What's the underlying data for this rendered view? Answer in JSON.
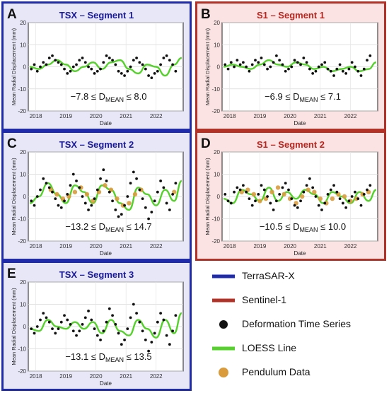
{
  "colors": {
    "tsx_border": "#1f2ba8",
    "tsx_bg": "#e7e7f8",
    "s1_border": "#b23228",
    "s1_bg": "#fbe3e3",
    "tsx_title": "#1a1a9c",
    "s1_title": "#b8261f",
    "points": "#111111",
    "loess": "#55d12b",
    "pendulum": "#d99b3c"
  },
  "legend": {
    "items": [
      {
        "label": "TerraSAR-X",
        "type": "line",
        "color": "#1f2ba8"
      },
      {
        "label": "Sentinel-1",
        "type": "line",
        "color": "#b23228"
      },
      {
        "label": "Deformation Time Series",
        "type": "dot",
        "color": "#111111"
      },
      {
        "label": "LOESS Line",
        "type": "line",
        "color": "#55d12b"
      },
      {
        "label": "Pendulum Data",
        "type": "dot",
        "color": "#d99b3c"
      }
    ]
  },
  "chart_data": [
    {
      "panel_letter": "A",
      "title": "TSX – Segment 1",
      "sensor": "TSX",
      "type": "scatter",
      "ylabel": "Mean Radial Displacement (mm)",
      "xlabel": "Date",
      "ylim": [
        -20,
        20
      ],
      "yticks": [
        -20,
        -10,
        0,
        10,
        20
      ],
      "xlim": [
        2017.75,
        2022.9
      ],
      "xticks": [
        "2018",
        "2019",
        "2020",
        "2021",
        "2022"
      ],
      "annotation": {
        "prefix": "−7.8 ≤ D",
        "sub": "MEAN",
        "suffix": " ≤ 8.0"
      },
      "series": [
        {
          "name": "Deformation Time Series",
          "kind": "points",
          "x": [
            2017.85,
            2017.95,
            2018.05,
            2018.15,
            2018.25,
            2018.35,
            2018.45,
            2018.55,
            2018.65,
            2018.75,
            2018.85,
            2018.95,
            2019.05,
            2019.15,
            2019.25,
            2019.35,
            2019.45,
            2019.55,
            2019.65,
            2019.75,
            2019.85,
            2019.95,
            2020.05,
            2020.15,
            2020.25,
            2020.35,
            2020.45,
            2020.55,
            2020.65,
            2020.75,
            2020.85,
            2020.95,
            2021.05,
            2021.15,
            2021.25,
            2021.35,
            2021.45,
            2021.55,
            2021.65,
            2021.75,
            2021.85,
            2021.95,
            2022.05,
            2022.15,
            2022.25,
            2022.35,
            2022.45,
            2022.55,
            2022.65
          ],
          "y": [
            -1,
            1,
            -2,
            0,
            2,
            1,
            4,
            5,
            3,
            2,
            1,
            -1,
            -3,
            -2,
            0,
            1,
            3,
            4,
            2,
            0,
            -1,
            -3,
            -2,
            -1,
            2,
            5,
            4,
            3,
            1,
            -2,
            -3,
            -4,
            -2,
            0,
            3,
            4,
            2,
            1,
            -1,
            -4,
            -5,
            -3,
            -2,
            1,
            4,
            5,
            3,
            1,
            -2
          ]
        },
        {
          "name": "LOESS Line",
          "kind": "line",
          "x": [
            2017.8,
            2018.1,
            2018.4,
            2018.7,
            2019.0,
            2019.3,
            2019.6,
            2019.9,
            2020.2,
            2020.5,
            2020.8,
            2021.1,
            2021.4,
            2021.7,
            2022.0,
            2022.3,
            2022.6,
            2022.85
          ],
          "y": [
            0,
            -1,
            1,
            3,
            1,
            -2,
            0,
            2,
            -1,
            2,
            3,
            -1,
            -3,
            1,
            0,
            -4,
            1,
            4
          ]
        }
      ]
    },
    {
      "panel_letter": "B",
      "title": "S1 – Segment 1",
      "sensor": "S1",
      "type": "scatter",
      "ylabel": "Mean Radial Displacement (mm)",
      "xlabel": "Date",
      "ylim": [
        -20,
        20
      ],
      "yticks": [
        -20,
        -10,
        0,
        10,
        20
      ],
      "xlim": [
        2017.75,
        2022.9
      ],
      "xticks": [
        "2018",
        "2019",
        "2020",
        "2021",
        "2022"
      ],
      "annotation": {
        "prefix": "−6.9 ≤ D",
        "sub": "MEAN",
        "suffix": " ≤ 7.1"
      },
      "series": [
        {
          "name": "Deformation Time Series",
          "kind": "points",
          "x": [
            2017.85,
            2017.95,
            2018.05,
            2018.15,
            2018.25,
            2018.35,
            2018.45,
            2018.55,
            2018.65,
            2018.75,
            2018.85,
            2018.95,
            2019.05,
            2019.15,
            2019.25,
            2019.35,
            2019.45,
            2019.55,
            2019.65,
            2019.75,
            2019.85,
            2019.95,
            2020.05,
            2020.15,
            2020.25,
            2020.35,
            2020.45,
            2020.55,
            2020.65,
            2020.75,
            2020.85,
            2020.95,
            2021.05,
            2021.15,
            2021.25,
            2021.35,
            2021.45,
            2021.55,
            2021.65,
            2021.75,
            2021.85,
            2021.95,
            2022.05,
            2022.15,
            2022.25,
            2022.35,
            2022.45,
            2022.55,
            2022.65
          ],
          "y": [
            1,
            -1,
            2,
            0,
            3,
            1,
            2,
            0,
            -2,
            1,
            3,
            2,
            4,
            1,
            -1,
            0,
            2,
            5,
            3,
            1,
            -2,
            -1,
            0,
            3,
            2,
            1,
            4,
            2,
            -1,
            -3,
            -2,
            0,
            1,
            2,
            -1,
            -2,
            -4,
            -1,
            1,
            -2,
            -3,
            -1,
            2,
            0,
            -2,
            -4,
            -1,
            3,
            5
          ]
        },
        {
          "name": "LOESS Line",
          "kind": "line",
          "x": [
            2017.8,
            2018.1,
            2018.4,
            2018.7,
            2019.0,
            2019.3,
            2019.6,
            2019.9,
            2020.2,
            2020.5,
            2020.8,
            2021.1,
            2021.4,
            2021.7,
            2022.0,
            2022.3,
            2022.6,
            2022.85
          ],
          "y": [
            0,
            1,
            0,
            -1,
            1,
            3,
            1,
            0,
            2,
            1,
            -1,
            0,
            -2,
            -1,
            0,
            -2,
            -1,
            2
          ]
        }
      ]
    },
    {
      "panel_letter": "C",
      "title": "TSX – Segment 2",
      "sensor": "TSX",
      "type": "scatter",
      "ylabel": "Mean Radial Displacement (mm)",
      "xlabel": "Date",
      "ylim": [
        -20,
        20
      ],
      "yticks": [
        -20,
        -10,
        0,
        10,
        20
      ],
      "xlim": [
        2017.75,
        2022.9
      ],
      "xticks": [
        "2018",
        "2019",
        "2020",
        "2021",
        "2022"
      ],
      "annotation": {
        "prefix": "−13.2 ≤ D",
        "sub": "MEAN",
        "suffix": " ≤ 14.7"
      },
      "series": [
        {
          "name": "Deformation Time Series",
          "kind": "points",
          "x": [
            2017.85,
            2017.95,
            2018.05,
            2018.15,
            2018.25,
            2018.35,
            2018.45,
            2018.55,
            2018.65,
            2018.75,
            2018.85,
            2018.95,
            2019.05,
            2019.15,
            2019.25,
            2019.35,
            2019.45,
            2019.55,
            2019.65,
            2019.75,
            2019.85,
            2019.95,
            2020.05,
            2020.15,
            2020.25,
            2020.35,
            2020.45,
            2020.55,
            2020.65,
            2020.75,
            2020.85,
            2020.95,
            2021.05,
            2021.15,
            2021.25,
            2021.35,
            2021.45,
            2021.55,
            2021.65,
            2021.75,
            2021.85,
            2021.95,
            2022.05,
            2022.15,
            2022.25,
            2022.35,
            2022.45,
            2022.55,
            2022.65
          ],
          "y": [
            -2,
            -4,
            0,
            3,
            8,
            6,
            4,
            2,
            -1,
            -4,
            -5,
            -2,
            1,
            5,
            10,
            7,
            4,
            0,
            -3,
            -6,
            -4,
            -1,
            3,
            8,
            12,
            7,
            2,
            -2,
            -6,
            -9,
            -8,
            -4,
            0,
            6,
            11,
            8,
            3,
            -1,
            -5,
            -10,
            -7,
            -2,
            2,
            7,
            4,
            -3,
            -6,
            1,
            6
          ]
        },
        {
          "name": "LOESS Line",
          "kind": "line",
          "x": [
            2017.8,
            2018.1,
            2018.4,
            2018.7,
            2019.0,
            2019.3,
            2019.6,
            2019.9,
            2020.2,
            2020.5,
            2020.8,
            2021.1,
            2021.4,
            2021.7,
            2022.0,
            2022.3,
            2022.6,
            2022.85
          ],
          "y": [
            -3,
            0,
            6,
            1,
            -3,
            5,
            2,
            -3,
            5,
            3,
            -3,
            -6,
            4,
            1,
            -4,
            3,
            -2,
            7
          ]
        },
        {
          "name": "Pendulum Data",
          "kind": "points",
          "x": [
            2018.5,
            2018.7,
            2018.9,
            2019.1,
            2019.3,
            2019.5,
            2019.7,
            2019.9,
            2020.1,
            2020.3,
            2020.5,
            2020.7,
            2020.9,
            2021.1,
            2021.3,
            2021.5,
            2022.6
          ],
          "y": [
            3,
            1,
            -1,
            0,
            2,
            4,
            1,
            -2,
            2,
            5,
            3,
            -1,
            -4,
            -3,
            1,
            3,
            2
          ]
        }
      ]
    },
    {
      "panel_letter": "D",
      "title": "S1 – Segment 2",
      "sensor": "S1",
      "type": "scatter",
      "ylabel": "Mean Radial Displacement (mm)",
      "xlabel": "Date",
      "ylim": [
        -20,
        20
      ],
      "yticks": [
        -20,
        -10,
        0,
        10,
        20
      ],
      "xlim": [
        2017.75,
        2022.9
      ],
      "xticks": [
        "2018",
        "2019",
        "2020",
        "2021",
        "2022"
      ],
      "annotation": {
        "prefix": "−10.5 ≤ D",
        "sub": "MEAN",
        "suffix": " ≤ 10.0"
      },
      "series": [
        {
          "name": "Deformation Time Series",
          "kind": "points",
          "x": [
            2017.85,
            2017.95,
            2018.05,
            2018.15,
            2018.25,
            2018.35,
            2018.45,
            2018.55,
            2018.65,
            2018.75,
            2018.85,
            2018.95,
            2019.05,
            2019.15,
            2019.25,
            2019.35,
            2019.45,
            2019.55,
            2019.65,
            2019.75,
            2019.85,
            2019.95,
            2020.05,
            2020.15,
            2020.25,
            2020.35,
            2020.45,
            2020.55,
            2020.65,
            2020.75,
            2020.85,
            2020.95,
            2021.05,
            2021.15,
            2021.25,
            2021.35,
            2021.45,
            2021.55,
            2021.65,
            2021.75,
            2021.85,
            2021.95,
            2022.05,
            2022.15,
            2022.25,
            2022.35,
            2022.45,
            2022.55,
            2022.65
          ],
          "y": [
            1,
            -2,
            -3,
            2,
            4,
            3,
            5,
            2,
            -1,
            -4,
            -2,
            1,
            5,
            3,
            0,
            -3,
            -6,
            -2,
            1,
            4,
            6,
            3,
            -1,
            -4,
            -5,
            -2,
            2,
            5,
            8,
            4,
            0,
            -4,
            -6,
            -3,
            1,
            3,
            5,
            2,
            -1,
            -3,
            -5,
            -2,
            0,
            2,
            -1,
            -4,
            1,
            3,
            5
          ]
        },
        {
          "name": "LOESS Line",
          "kind": "line",
          "x": [
            2017.8,
            2018.1,
            2018.4,
            2018.7,
            2019.0,
            2019.3,
            2019.6,
            2019.9,
            2020.2,
            2020.5,
            2020.8,
            2021.1,
            2021.4,
            2021.7,
            2022.0,
            2022.3,
            2022.6,
            2022.85
          ],
          "y": [
            -1,
            -3,
            3,
            1,
            -2,
            4,
            -2,
            2,
            -1,
            3,
            1,
            -3,
            2,
            0,
            -3,
            2,
            -2,
            3
          ]
        },
        {
          "name": "Pendulum Data",
          "kind": "points",
          "x": [
            2018.4,
            2018.6,
            2018.8,
            2019.0,
            2019.2,
            2019.4,
            2019.6,
            2019.8,
            2020.0,
            2020.2,
            2020.4,
            2020.6,
            2020.8,
            2021.0,
            2021.2,
            2021.4,
            2021.6,
            2021.8,
            2022.0,
            2022.2,
            2022.4,
            2022.6
          ],
          "y": [
            2,
            3,
            1,
            -2,
            -1,
            2,
            4,
            1,
            -1,
            -3,
            0,
            3,
            2,
            -1,
            -3,
            -1,
            1,
            0,
            -2,
            -1,
            1,
            2
          ]
        }
      ]
    },
    {
      "panel_letter": "E",
      "title": "TSX – Segment 3",
      "sensor": "TSX",
      "type": "scatter",
      "ylabel": "Mean Radial Displacement (mm)",
      "xlabel": "Date",
      "ylim": [
        -20,
        20
      ],
      "yticks": [
        -20,
        -10,
        0,
        10,
        20
      ],
      "xlim": [
        2017.75,
        2022.9
      ],
      "xticks": [
        "2018",
        "2019",
        "2020",
        "2021",
        "2022"
      ],
      "annotation": {
        "prefix": "−13.1 ≤ D",
        "sub": "MEAN",
        "suffix": " ≤ 13.5"
      },
      "series": [
        {
          "name": "Deformation Time Series",
          "kind": "points",
          "x": [
            2017.85,
            2017.95,
            2018.05,
            2018.15,
            2018.25,
            2018.35,
            2018.45,
            2018.55,
            2018.65,
            2018.75,
            2018.85,
            2018.95,
            2019.05,
            2019.15,
            2019.25,
            2019.35,
            2019.45,
            2019.55,
            2019.65,
            2019.75,
            2019.85,
            2019.95,
            2020.05,
            2020.15,
            2020.25,
            2020.35,
            2020.45,
            2020.55,
            2020.65,
            2020.75,
            2020.85,
            2020.95,
            2021.05,
            2021.15,
            2021.25,
            2021.35,
            2021.45,
            2021.55,
            2021.65,
            2021.75,
            2021.85,
            2021.95,
            2022.05,
            2022.15,
            2022.25,
            2022.35,
            2022.45,
            2022.55,
            2022.65
          ],
          "y": [
            -1,
            -3,
            0,
            3,
            6,
            4,
            2,
            -1,
            -3,
            -1,
            2,
            5,
            3,
            1,
            -2,
            -4,
            -2,
            1,
            4,
            7,
            3,
            -1,
            -4,
            -6,
            -2,
            2,
            8,
            5,
            1,
            -3,
            -8,
            -6,
            -1,
            4,
            10,
            6,
            2,
            -2,
            -6,
            -11,
            -7,
            -3,
            2,
            6,
            3,
            -4,
            -8,
            -2,
            5
          ]
        },
        {
          "name": "LOESS Line",
          "kind": "line",
          "x": [
            2017.8,
            2018.1,
            2018.4,
            2018.7,
            2019.0,
            2019.3,
            2019.6,
            2019.9,
            2020.2,
            2020.5,
            2020.8,
            2021.1,
            2021.4,
            2021.7,
            2022.0,
            2022.3,
            2022.6,
            2022.85
          ],
          "y": [
            -1,
            -2,
            3,
            0,
            -1,
            2,
            -1,
            2,
            -3,
            3,
            -2,
            -4,
            3,
            -1,
            -5,
            3,
            -3,
            6
          ]
        }
      ]
    }
  ]
}
